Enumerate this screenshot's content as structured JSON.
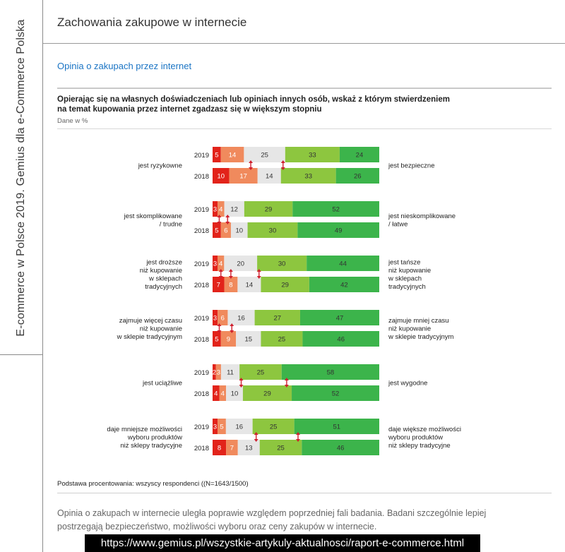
{
  "sidebar": {
    "text": "E-commerce w Polsce 2019. Gemius dla e-Commerce Polska"
  },
  "header": {
    "title": "Zachowania zakupowe w internecie"
  },
  "section": {
    "title": "Opinia o zakupach przez internet"
  },
  "question": {
    "line1": "Opierając się na własnych doświadczeniach lub opiniach innych osób, wskaż z którym stwierdzeniem",
    "line2": "na temat kupowania przez internet zgadzasz się w większym stopniu",
    "unit": "Dane w %"
  },
  "colors": {
    "seg1": "#e2231a",
    "seg2": "#f08a5d",
    "seg3": "#e6e6e6",
    "seg4": "#8dc63f",
    "seg5": "#3cb44b",
    "arrow": "#d0202e"
  },
  "chart_data": {
    "type": "bar",
    "orientation": "horizontal-stacked-100",
    "unit": "%",
    "series_names": [
      "scale 1",
      "scale 2",
      "scale 3 (neutral)",
      "scale 4",
      "scale 5"
    ],
    "groups": [
      {
        "left_label": [
          "jest ryzykowne"
        ],
        "right_label": [
          "jest bezpieczne"
        ],
        "rows": [
          {
            "year": "2019",
            "values": [
              5,
              14,
              25,
              33,
              24
            ]
          },
          {
            "year": "2018",
            "values": [
              10,
              17,
              14,
              33,
              26
            ]
          }
        ],
        "arrows": [
          1,
          2
        ]
      },
      {
        "left_label": [
          "jest skomplikowane",
          "/ trudne"
        ],
        "right_label": [
          "jest nieskomplikowane",
          "/ łatwe"
        ],
        "rows": [
          {
            "year": "2019",
            "values": [
              3,
              4,
              12,
              29,
              52
            ]
          },
          {
            "year": "2018",
            "values": [
              5,
              6,
              10,
              30,
              49
            ]
          }
        ],
        "arrows": [
          0,
          1
        ]
      },
      {
        "left_label": [
          "jest droższe",
          "niż kupowanie",
          "w sklepach",
          "tradycyjnych"
        ],
        "right_label": [
          "jest tańsze",
          "niż kupowanie",
          "w sklepach",
          "tradycyjnych"
        ],
        "rows": [
          {
            "year": "2019",
            "values": [
              3,
              4,
              20,
              30,
              44
            ]
          },
          {
            "year": "2018",
            "values": [
              7,
              8,
              14,
              29,
              42
            ]
          }
        ],
        "arrows": [
          0,
          1,
          2
        ]
      },
      {
        "left_label": [
          "zajmuje więcej czasu",
          "niż kupowanie",
          "w sklepie tradycyjnym"
        ],
        "right_label": [
          "zajmuje mniej czasu",
          "niż kupowanie",
          "w sklepie tradycyjnym"
        ],
        "rows": [
          {
            "year": "2019",
            "values": [
              3,
              6,
              16,
              27,
              47
            ]
          },
          {
            "year": "2018",
            "values": [
              5,
              9,
              15,
              25,
              46
            ]
          }
        ],
        "arrows": [
          0,
          1
        ]
      },
      {
        "left_label": [
          "jest uciążliwe"
        ],
        "right_label": [
          "jest wygodne"
        ],
        "rows": [
          {
            "year": "2019",
            "values": [
              2,
              3,
              11,
              25,
              58
            ]
          },
          {
            "year": "2018",
            "values": [
              4,
              4,
              10,
              29,
              52
            ]
          }
        ],
        "arrows": [
          2,
          3
        ]
      },
      {
        "left_label": [
          "daje mniejsze możliwości",
          "wyboru produktów",
          "niż sklepy tradycyjne"
        ],
        "right_label": [
          "daje większe możliwości",
          "wyboru produktów",
          "niż sklepy tradycyjne"
        ],
        "rows": [
          {
            "year": "2019",
            "values": [
              3,
              5,
              16,
              25,
              51
            ]
          },
          {
            "year": "2018",
            "values": [
              8,
              7,
              13,
              25,
              46
            ]
          }
        ],
        "arrows": [
          2,
          3
        ]
      }
    ]
  },
  "footnote": "Podstawa procentowania: wszyscy respondenci ((N=1643/1500)",
  "summary": {
    "line1": "Opinia o zakupach w internecie uległa poprawie względem poprzedniej fali badania. Badani szczególnie lepiej",
    "line2": "postrzegają bezpieczeństwo, możliwości wyboru oraz ceny zakupów w internecie."
  },
  "url": "https://www.gemius.pl/wszystkie-artykuly-aktualnosci/raport-e-commerce.html"
}
